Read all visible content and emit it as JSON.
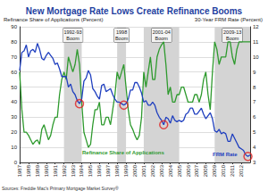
{
  "chart_data": {
    "type": "line",
    "title": "New Mortgage Rate Lows Create Refinance Booms",
    "source": "Sources: Freddie Mac's Primary Mortgage Market Survey®",
    "ylabel": "Refinance Share of Applications (Percent)",
    "y2label": "30-Year FRM Rate (Percent)",
    "grid": true,
    "xlim": [
      1987,
      2013
    ],
    "xticks": [
      1987,
      1988,
      1989,
      1990,
      1991,
      1992,
      1993,
      1994,
      1995,
      1996,
      1997,
      1998,
      1999,
      2000,
      2001,
      2002,
      2003,
      2004,
      2005,
      2006,
      2007,
      2008,
      2009,
      2010,
      2011,
      2012
    ],
    "ylim": [
      0,
      90
    ],
    "yticks": [
      0,
      10,
      20,
      30,
      40,
      50,
      60,
      70,
      80,
      90
    ],
    "y2lim": [
      3,
      12
    ],
    "y2ticks": [
      3,
      4,
      5,
      6,
      7,
      8,
      9,
      10,
      11,
      12
    ],
    "x": [
      1987,
      1987.25,
      1987.5,
      1987.75,
      1988,
      1988.25,
      1988.5,
      1988.75,
      1989,
      1989.25,
      1989.5,
      1989.75,
      1990,
      1990.25,
      1990.5,
      1990.75,
      1991,
      1991.25,
      1991.5,
      1991.75,
      1992,
      1992.25,
      1992.5,
      1992.75,
      1993,
      1993.25,
      1993.5,
      1993.75,
      1994,
      1994.25,
      1994.5,
      1994.75,
      1995,
      1995.25,
      1995.5,
      1995.75,
      1996,
      1996.25,
      1996.5,
      1996.75,
      1997,
      1997.25,
      1997.5,
      1997.75,
      1998,
      1998.25,
      1998.5,
      1998.75,
      1999,
      1999.25,
      1999.5,
      1999.75,
      2000,
      2000.25,
      2000.5,
      2000.75,
      2001,
      2001.25,
      2001.5,
      2001.75,
      2002,
      2002.25,
      2002.5,
      2002.75,
      2003,
      2003.25,
      2003.5,
      2003.75,
      2004,
      2004.25,
      2004.5,
      2004.75,
      2005,
      2005.25,
      2005.5,
      2005.75,
      2006,
      2006.25,
      2006.5,
      2006.75,
      2007,
      2007.25,
      2007.5,
      2007.75,
      2008,
      2008.25,
      2008.5,
      2008.75,
      2009,
      2009.25,
      2009.5,
      2009.75,
      2010,
      2010.25,
      2010.5,
      2010.75,
      2011,
      2011.25,
      2011.5,
      2011.75,
      2012,
      2012.25,
      2012.5,
      2012.75,
      2013
    ],
    "series": [
      {
        "name": "Refinance Share of Applications",
        "color": "#2e9a2e",
        "axis": "y",
        "values": [
          60,
          35,
          20,
          20,
          18,
          15,
          12,
          14,
          15,
          12,
          22,
          25,
          20,
          15,
          18,
          25,
          30,
          30,
          45,
          55,
          60,
          55,
          70,
          65,
          60,
          65,
          75,
          65,
          40,
          20,
          15,
          10,
          12,
          25,
          35,
          35,
          40,
          25,
          25,
          30,
          30,
          25,
          35,
          45,
          60,
          55,
          60,
          65,
          50,
          35,
          25,
          22,
          18,
          15,
          18,
          30,
          60,
          50,
          60,
          70,
          55,
          55,
          70,
          75,
          78,
          80,
          65,
          45,
          50,
          40,
          40,
          45,
          45,
          50,
          50,
          45,
          40,
          40,
          40,
          45,
          45,
          40,
          45,
          55,
          60,
          45,
          35,
          60,
          80,
          75,
          65,
          70,
          70,
          70,
          80,
          80,
          70,
          65,
          75,
          80,
          80,
          80,
          80,
          80,
          80
        ]
      },
      {
        "name": "FRM Rate",
        "color": "#1f3fbf",
        "axis": "y2",
        "values": [
          9.1,
          10.3,
          10.4,
          10.8,
          10.0,
          10.4,
          10.5,
          10.3,
          10.9,
          10.5,
          9.9,
          9.8,
          10.1,
          10.3,
          10.1,
          9.9,
          9.5,
          9.6,
          9.2,
          8.7,
          8.7,
          8.7,
          8.0,
          8.2,
          7.7,
          7.5,
          7.1,
          6.9,
          7.2,
          8.4,
          8.6,
          9.1,
          8.8,
          7.9,
          7.7,
          7.4,
          7.2,
          8.1,
          8.2,
          7.7,
          7.8,
          7.9,
          7.5,
          7.2,
          7.0,
          7.0,
          6.9,
          6.8,
          6.9,
          7.2,
          7.8,
          7.8,
          8.3,
          8.3,
          8.0,
          7.6,
          7.0,
          7.1,
          6.8,
          6.8,
          7.0,
          6.8,
          6.3,
          6.0,
          5.8,
          5.5,
          6.0,
          5.9,
          5.6,
          6.1,
          5.8,
          5.7,
          5.8,
          5.7,
          5.8,
          6.2,
          6.3,
          6.6,
          6.6,
          6.2,
          6.2,
          6.4,
          6.6,
          6.2,
          5.9,
          6.1,
          6.3,
          5.9,
          5.1,
          5.0,
          5.2,
          4.9,
          5.0,
          4.9,
          4.4,
          4.4,
          4.9,
          4.6,
          4.3,
          4.0,
          3.9,
          3.8,
          3.5,
          3.4,
          3.5
        ]
      }
    ],
    "shaded_regions": [
      {
        "label": "1992-93 Boom",
        "x": [
          1992,
          1994
        ]
      },
      {
        "label": "1998 Boom",
        "x": [
          1998,
          1999
        ]
      },
      {
        "label": "2001-04 Boom",
        "x": [
          2001,
          2005
        ]
      },
      {
        "label": "2009-13 Boom",
        "x": [
          2009,
          2013
        ]
      }
    ],
    "highlights": {
      "axis": "y2",
      "color": "#e02020",
      "marker": "circle-open",
      "points": [
        [
          1993.75,
          6.9
        ],
        [
          1998.75,
          6.8
        ],
        [
          2003.25,
          5.5
        ],
        [
          2012.75,
          3.4
        ]
      ]
    }
  }
}
